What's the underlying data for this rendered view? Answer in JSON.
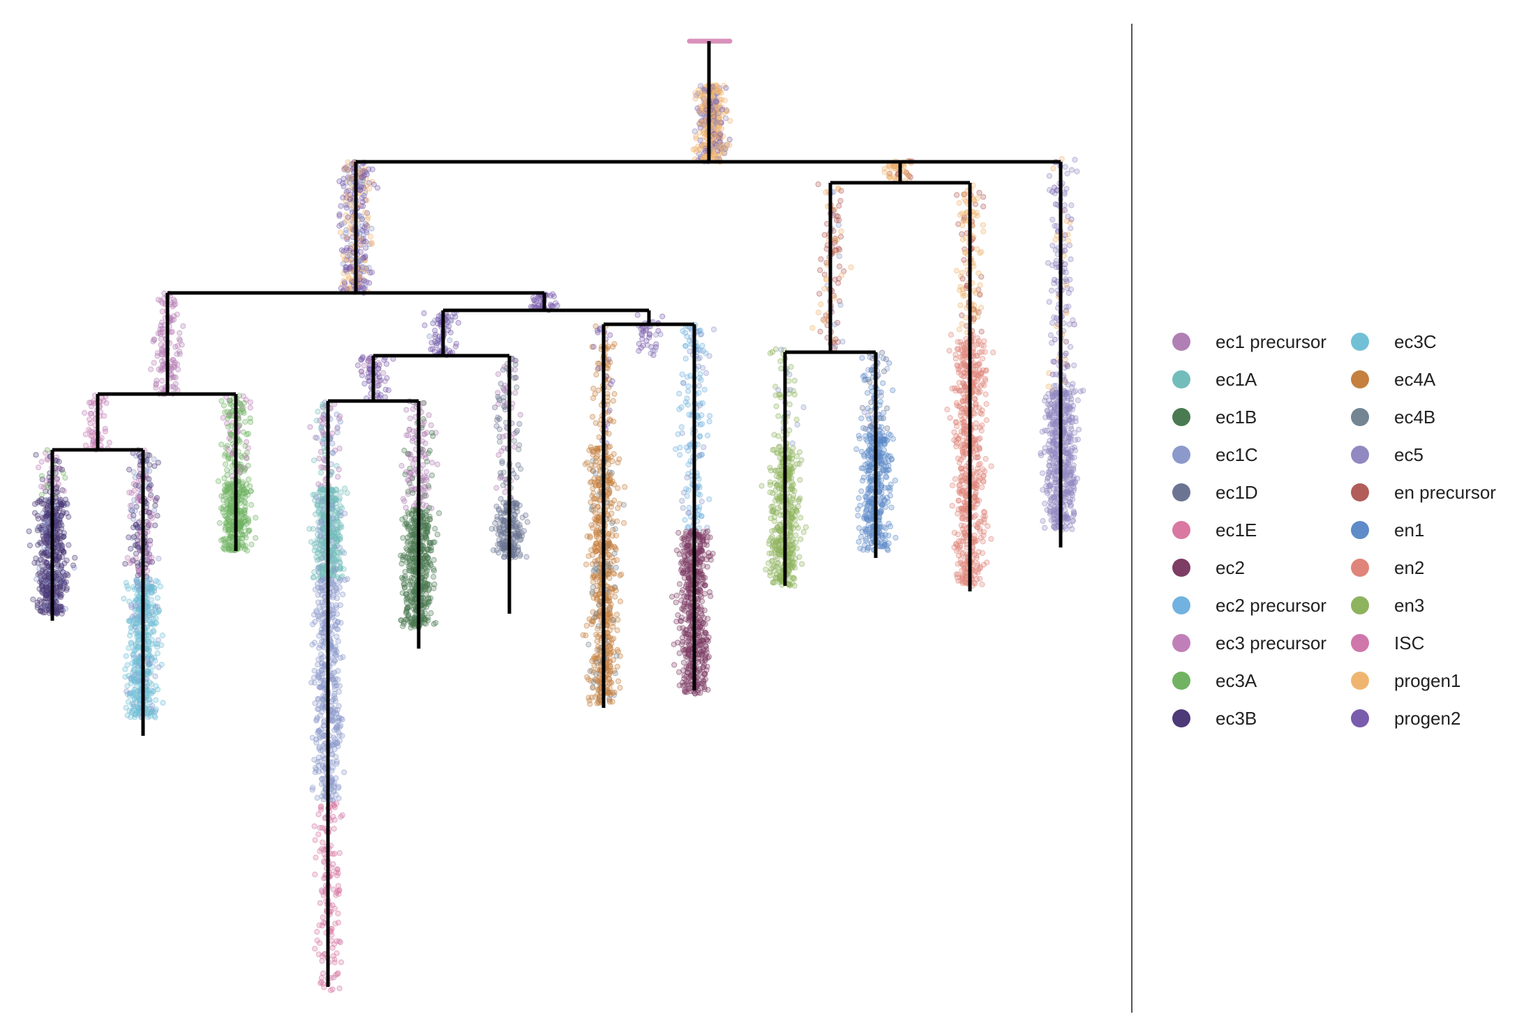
{
  "legend": {
    "items": [
      {
        "label": "ec1 precursor",
        "color": "#b07fb4"
      },
      {
        "label": "ec1A",
        "color": "#72bdbb"
      },
      {
        "label": "ec1B",
        "color": "#4a7a51"
      },
      {
        "label": "ec1C",
        "color": "#8c99cb"
      },
      {
        "label": "ec1D",
        "color": "#6b7592"
      },
      {
        "label": "ec1E",
        "color": "#d978a1"
      },
      {
        "label": "ec2",
        "color": "#7d3d64"
      },
      {
        "label": "ec2 precursor",
        "color": "#72b2e0"
      },
      {
        "label": "ec3 precursor",
        "color": "#c07fb8"
      },
      {
        "label": "ec3A",
        "color": "#71b363"
      },
      {
        "label": "ec3B",
        "color": "#4d3a78"
      },
      {
        "label": "ec3C",
        "color": "#71c0d6"
      },
      {
        "label": "ec4A",
        "color": "#c5803f"
      },
      {
        "label": "ec4B",
        "color": "#738592"
      },
      {
        "label": "ec5",
        "color": "#9189c1"
      },
      {
        "label": "en precursor",
        "color": "#b25d5a"
      },
      {
        "label": "en1",
        "color": "#5f8bc8"
      },
      {
        "label": "en2",
        "color": "#e0857a"
      },
      {
        "label": "en3",
        "color": "#8eb35e"
      },
      {
        "label": "ISC",
        "color": "#cf76aa"
      },
      {
        "label": "progen1",
        "color": "#efb570"
      },
      {
        "label": "progen2",
        "color": "#7a5cac"
      }
    ]
  },
  "style": {
    "branch_color": "#000000",
    "divider_color": "#555555"
  }
}
